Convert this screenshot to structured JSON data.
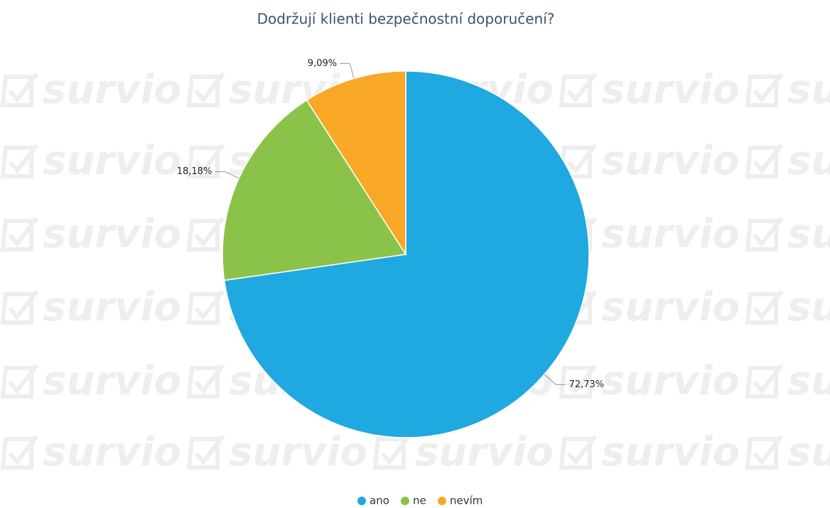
{
  "chart_data": {
    "type": "pie",
    "title": "Dodržují klienti bezpečnostní doporučení?",
    "watermark": "survio",
    "categories": [
      "ano",
      "ne",
      "nevím"
    ],
    "values": [
      72.73,
      18.18,
      9.09
    ],
    "value_labels": [
      "72,73%",
      "18,18%",
      "9,09%"
    ],
    "colors": [
      "#20a8e0",
      "#8bc34a",
      "#f9a825"
    ],
    "legend": "bottom"
  }
}
